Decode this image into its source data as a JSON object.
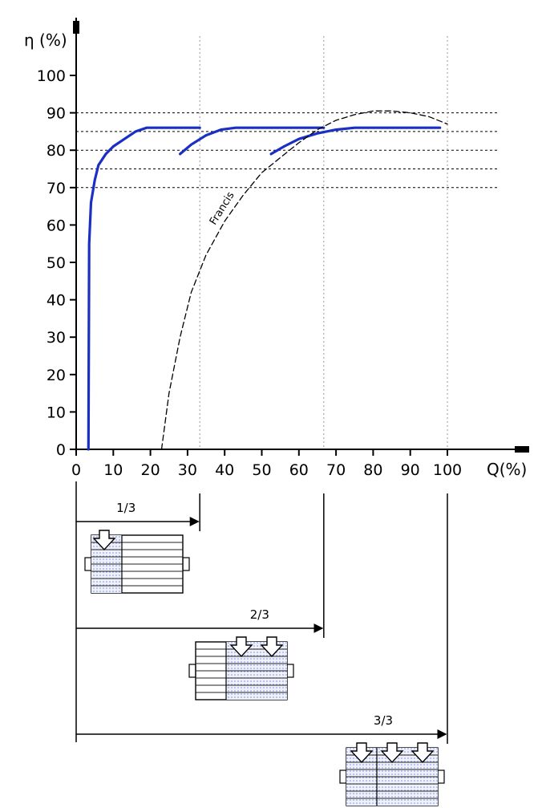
{
  "chart_data": {
    "type": "line",
    "ylabel": "η (%)",
    "xlabel": "Q(%)",
    "xlim": [
      0,
      120
    ],
    "ylim": [
      0,
      100
    ],
    "x_ticks": [
      0,
      10,
      20,
      30,
      40,
      50,
      60,
      70,
      80,
      90,
      100
    ],
    "y_ticks": [
      0,
      10,
      20,
      30,
      40,
      50,
      60,
      70,
      80,
      90,
      100
    ],
    "x_tick_labels": [
      "0",
      "10",
      "20",
      "30",
      "40",
      "50",
      "60",
      "70",
      "80",
      "90",
      "100"
    ],
    "y_tick_labels": [
      "0",
      "10",
      "20",
      "30",
      "40",
      "50",
      "60",
      "70",
      "80",
      "90",
      "100"
    ],
    "reference_lines_y": [
      90,
      85,
      80,
      75,
      70
    ],
    "divider_lines_x": [
      33.3,
      66.7,
      100
    ],
    "grid": false,
    "series": [
      {
        "color": "#1a2fc4",
        "style": "solid",
        "x": [
          3.3,
          3.5,
          4,
          5,
          6,
          8,
          10,
          13,
          16,
          19,
          21,
          25,
          30,
          33.3
        ],
        "y": [
          0,
          55,
          66,
          72,
          76,
          79,
          81,
          83,
          85,
          86,
          86,
          86,
          86,
          86
        ]
      },
      {
        "color": "#1a2fc4",
        "style": "solid",
        "x": [
          28,
          31,
          35,
          39,
          43,
          50,
          55,
          60,
          66.7
        ],
        "y": [
          79,
          81.5,
          84,
          85.5,
          86,
          86,
          86,
          86,
          86
        ]
      },
      {
        "color": "#1a2fc4",
        "style": "solid",
        "x": [
          52.5,
          56,
          60,
          65,
          70,
          75,
          80,
          90,
          98
        ],
        "y": [
          79,
          81,
          83,
          84.5,
          85.5,
          86,
          86,
          86,
          86
        ]
      },
      {
        "name": "Francis",
        "color": "#000000",
        "style": "dashed",
        "x": [
          23,
          25,
          28,
          31,
          35,
          40,
          45,
          50,
          55,
          60,
          65,
          70,
          75,
          80,
          85,
          90,
          95,
          100
        ],
        "y": [
          0,
          15,
          30,
          42,
          52,
          61,
          68,
          74,
          78,
          82,
          85.5,
          88,
          89.5,
          90.5,
          90.5,
          90,
          89,
          87
        ]
      }
    ],
    "annotations": [
      {
        "text": "Francis",
        "x": 40,
        "y": 64,
        "angle": -58
      }
    ],
    "turbine_groups": [
      {
        "label": "1/3",
        "end_q": 33.3,
        "arrows": 1
      },
      {
        "label": "2/3",
        "end_q": 66.7,
        "arrows": 2
      },
      {
        "label": "3/3",
        "end_q": 100,
        "arrows": 3
      }
    ]
  }
}
